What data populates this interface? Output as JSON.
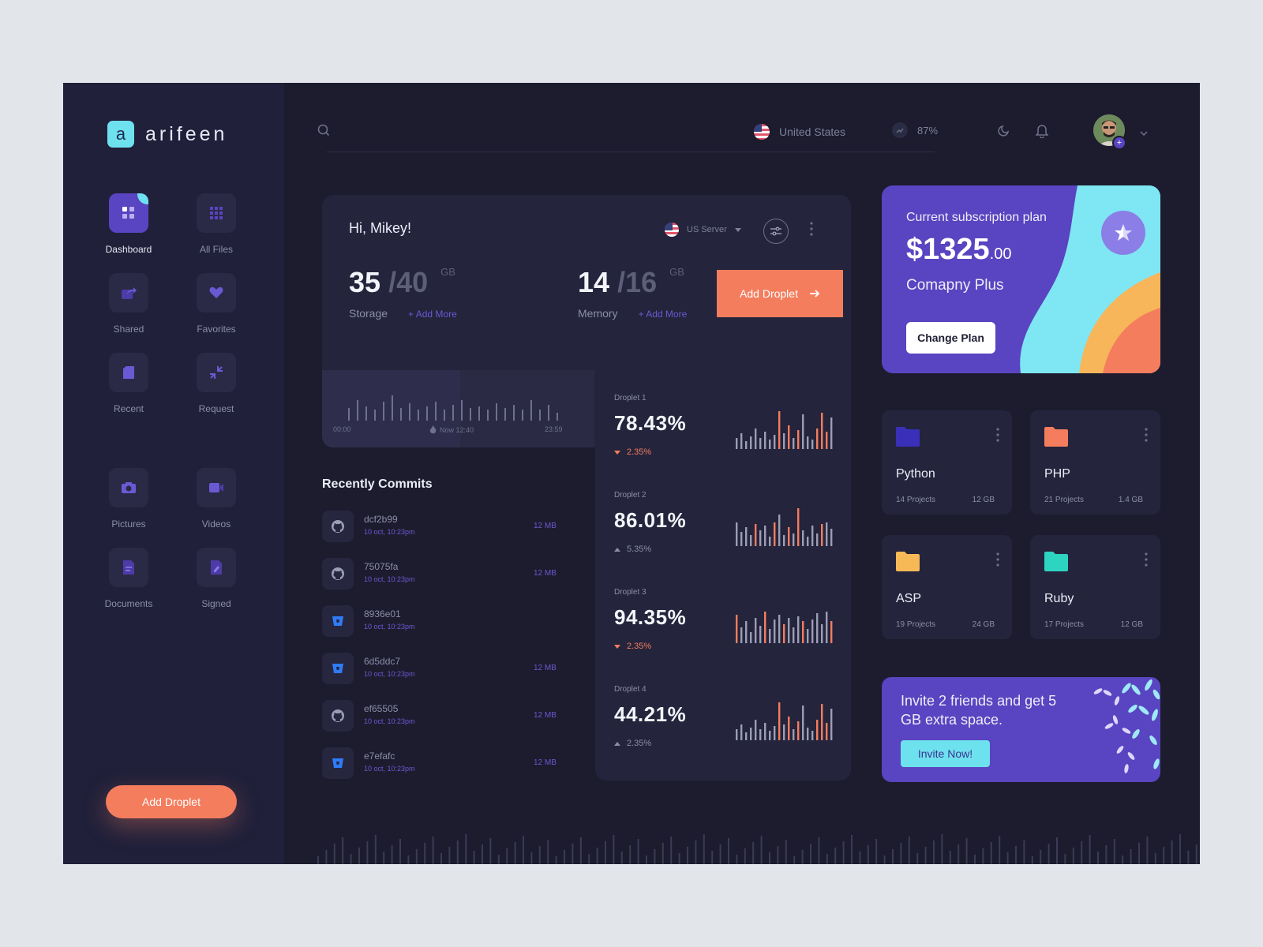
{
  "brand": {
    "logo_letter": "a",
    "name": "arifeen"
  },
  "sidebar": {
    "items": [
      {
        "label": "Dashboard",
        "icon": "dashboard-icon",
        "active": true
      },
      {
        "label": "All Files",
        "icon": "grid-icon"
      },
      {
        "label": "Shared",
        "icon": "share-icon"
      },
      {
        "label": "Favorites",
        "icon": "heart-icon"
      },
      {
        "label": "Recent",
        "icon": "recent-icon"
      },
      {
        "label": "Request",
        "icon": "request-icon"
      },
      {
        "label": "Pictures",
        "icon": "camera-icon"
      },
      {
        "label": "Videos",
        "icon": "video-icon"
      },
      {
        "label": "Documents",
        "icon": "document-icon"
      },
      {
        "label": "Signed",
        "icon": "signed-icon"
      }
    ],
    "button_label": "Add Droplet"
  },
  "topbar": {
    "country": "United States",
    "stat_value": "87%"
  },
  "overview": {
    "greeting": "Hi, Mikey!",
    "server_label": "US Server",
    "storage": {
      "used": "35",
      "total": "/40",
      "unit": "GB",
      "label": "Storage",
      "add_more": "+ Add More"
    },
    "memory": {
      "used": "14",
      "total": "/16",
      "unit": "GB",
      "label": "Memory",
      "add_more": "+ Add More"
    },
    "add_button": "Add Droplet",
    "timeline": {
      "start": "00:00",
      "now": "Now 12:40",
      "end": "23:59"
    }
  },
  "commits": {
    "title": "Recently Commits",
    "items": [
      {
        "hash": "dcf2b99",
        "date": "10 oct, 10:23pm",
        "size": "12 MB",
        "source": "github"
      },
      {
        "hash": "75075fa",
        "date": "10 oct, 10:23pm",
        "size": "12 MB",
        "source": "github"
      },
      {
        "hash": "8936e01",
        "date": "10 oct, 10:23pm",
        "size": "",
        "source": "bitbucket"
      },
      {
        "hash": "6d5ddc7",
        "date": "10 oct, 10:23pm",
        "size": "12 MB",
        "source": "bitbucket"
      },
      {
        "hash": "ef65505",
        "date": "10 oct, 10:23pm",
        "size": "12 MB",
        "source": "github"
      },
      {
        "hash": "e7efafc",
        "date": "10 oct, 10:23pm",
        "size": "12 MB",
        "source": "bitbucket"
      }
    ]
  },
  "droplets": [
    {
      "name": "Droplet 1",
      "value": "78.43%",
      "change": "2.35%",
      "direction": "down"
    },
    {
      "name": "Droplet 2",
      "value": "86.01%",
      "change": "5.35%",
      "direction": "up"
    },
    {
      "name": "Droplet 3",
      "value": "94.35%",
      "change": "2.35%",
      "direction": "down"
    },
    {
      "name": "Droplet 4",
      "value": "44.21%",
      "change": "2.35%",
      "direction": "up"
    }
  ],
  "plan": {
    "title": "Current subscription plan",
    "price": "$1325",
    "cents": ".00",
    "name": "Comapny Plus",
    "button": "Change Plan"
  },
  "folders": [
    {
      "name": "Python",
      "projects": "14 Projects",
      "size": "12 GB",
      "color": "#3a2fb8"
    },
    {
      "name": "PHP",
      "projects": "21 Projects",
      "size": "1.4 GB",
      "color": "#f47d5e"
    },
    {
      "name": "ASP",
      "projects": "19 Projects",
      "size": "24 GB",
      "color": "#f7b955"
    },
    {
      "name": "Ruby",
      "projects": "17 Projects",
      "size": "12 GB",
      "color": "#2dd4bf"
    }
  ],
  "invite": {
    "text": "Invite 2 friends and get 5 GB extra space.",
    "button": "Invite Now!"
  },
  "colors": {
    "accent": "#f47d5e",
    "primary": "#5944c1",
    "cyan": "#6ee1ef",
    "background": "#1c1c2e"
  }
}
